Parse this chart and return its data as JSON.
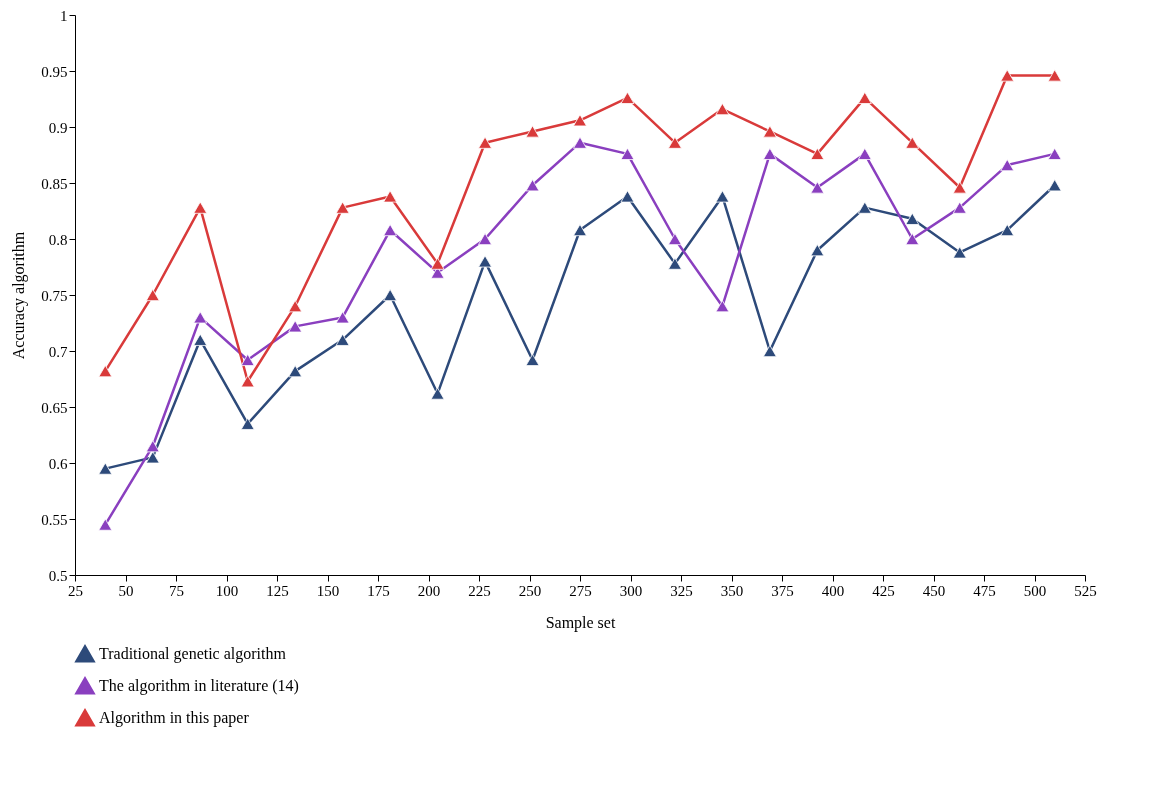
{
  "chart_data": {
    "type": "line",
    "xlabel": "Sample set",
    "ylabel": "Accuracy algorithm",
    "x": [
      40,
      63.5,
      87,
      110.5,
      134,
      157.5,
      181,
      204.5,
      228,
      251.5,
      275,
      298.5,
      322,
      345.5,
      369,
      392.5,
      416,
      439.5,
      463,
      486.5,
      510
    ],
    "series": [
      {
        "name": "Traditional genetic algorithm",
        "color": "#2d4a7a",
        "values": [
          0.595,
          0.605,
          0.71,
          0.635,
          0.682,
          0.71,
          0.75,
          0.662,
          0.78,
          0.692,
          0.808,
          0.838,
          0.778,
          0.838,
          0.7,
          0.79,
          0.828,
          0.818,
          0.788,
          0.808,
          0.848
        ]
      },
      {
        "name": "The algorithm in literature (14)",
        "color": "#8a3fbf",
        "values": [
          0.545,
          0.615,
          0.73,
          0.692,
          0.722,
          0.73,
          0.808,
          0.77,
          0.8,
          0.848,
          0.886,
          0.876,
          0.8,
          0.74,
          0.876,
          0.846,
          0.876,
          0.8,
          0.828,
          0.866,
          0.876
        ]
      },
      {
        "name": "Algorithm in this paper",
        "color": "#d93a3a",
        "values": [
          0.682,
          0.75,
          0.828,
          0.673,
          0.74,
          0.828,
          0.838,
          0.778,
          0.886,
          0.896,
          0.906,
          0.926,
          0.886,
          0.916,
          0.896,
          0.876,
          0.926,
          0.886,
          0.846,
          0.946,
          0.946
        ]
      }
    ],
    "xlim": [
      25,
      525
    ],
    "xticks": [
      25,
      50,
      75,
      100,
      125,
      150,
      175,
      200,
      225,
      250,
      275,
      300,
      325,
      350,
      375,
      400,
      425,
      450,
      475,
      500,
      525
    ],
    "ylim": [
      0.5,
      1
    ],
    "yticks": [
      0.5,
      0.55,
      0.6,
      0.65,
      0.7,
      0.75,
      0.8,
      0.85,
      0.9,
      0.95,
      1
    ],
    "grid": false,
    "legend": "bottom",
    "marker": "triangle",
    "line_style": "solid"
  }
}
